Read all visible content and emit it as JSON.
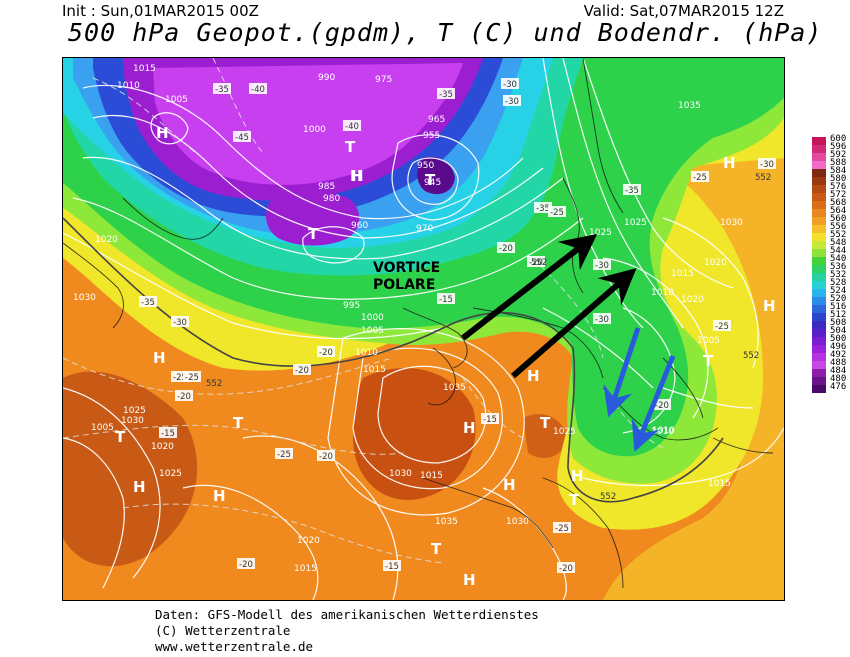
{
  "header": {
    "init": "Init : Sun,01MAR2015 00Z",
    "valid": "Valid: Sat,07MAR2015 12Z",
    "title": "500 hPa Geopot.(gpdm), T (C) und Bodendr. (hPa)"
  },
  "annotation": {
    "vortex_label": "VORTICE POLARE"
  },
  "colors": {
    "deep_purple": "#5a0a8c",
    "purple": "#9b1fd0",
    "magenta": "#c83ff0",
    "blue": "#2b4cd6",
    "light_blue": "#3aa0f0",
    "cyan": "#28d2e6",
    "teal": "#22d6a8",
    "green": "#2ed24a",
    "lime": "#8ee83a",
    "yellow": "#f0e62a",
    "orange_light": "#f5b428",
    "orange": "#f08a1e",
    "rust": "#c85010",
    "arrow_black": "#000000",
    "arrow_blue": "#2a5adc"
  },
  "legend": {
    "labels": [
      "600",
      "596",
      "592",
      "588",
      "584",
      "580",
      "576",
      "572",
      "568",
      "564",
      "560",
      "556",
      "552",
      "548",
      "544",
      "540",
      "536",
      "532",
      "528",
      "524",
      "520",
      "516",
      "512",
      "508",
      "504",
      "500",
      "496",
      "492",
      "488",
      "484",
      "480",
      "476"
    ],
    "colors": [
      "#c8145a",
      "#d22a7a",
      "#e04aa0",
      "#f06ac8",
      "#7a2a10",
      "#9a3a12",
      "#b44a14",
      "#c85a16",
      "#d8701a",
      "#e8881e",
      "#f0a024",
      "#f5c02a",
      "#f5e02c",
      "#c8e83a",
      "#8ee03a",
      "#44d23a",
      "#2ed264",
      "#26d2a0",
      "#28d2d2",
      "#2ab4ec",
      "#2a8ee8",
      "#2a66dc",
      "#2a44cc",
      "#3a2abe",
      "#5a20c8",
      "#7a1ed2",
      "#9a22dc",
      "#b432e0",
      "#c848e4",
      "#8a1eaa",
      "#6a1488",
      "#4a0a6a"
    ]
  },
  "pressure_labels": [
    "1015",
    "1010",
    "1005",
    "1000",
    "990",
    "985",
    "980",
    "975",
    "965",
    "960",
    "955",
    "950",
    "945",
    "970",
    "1030",
    "1035",
    "1025",
    "1020",
    "1015",
    "1010",
    "1005",
    "1000",
    "995",
    "1035",
    "1025",
    "1030",
    "1020",
    "1010",
    "1015",
    "1020",
    "1025",
    "1030",
    "1035",
    "1005",
    "1010",
    "1015",
    "1020",
    "1025",
    "1030",
    "1015",
    "1025",
    "1030",
    "1020",
    "1015",
    "1010",
    "1005"
  ],
  "temp_labels": [
    "-35",
    "-40",
    "-45",
    "-40",
    "-35",
    "-30",
    "-30",
    "-35",
    "-25",
    "-30",
    "-25",
    "-20",
    "-15",
    "-25",
    "-20",
    "-15",
    "-20",
    "-20",
    "-20",
    "-30",
    "-35",
    "-25",
    "-30",
    "-25",
    "-15",
    "-20",
    "-15",
    "-20",
    "-20",
    "-25",
    "-30",
    "-35",
    "-20",
    "-25"
  ],
  "pressure_systems": [
    "H",
    "H",
    "H",
    "H",
    "H",
    "H",
    "H",
    "H",
    "H",
    "H",
    "H",
    "H",
    "H",
    "T",
    "T",
    "T",
    "T",
    "T",
    "T",
    "T",
    "T",
    "T"
  ],
  "isohypse_labels": [
    "552",
    "552",
    "552",
    "552",
    "552"
  ],
  "credits": {
    "line1": "Daten: GFS-Modell des amerikanischen Wetterdienstes",
    "line2": "(C) Wetterzentrale",
    "line3": "www.wetterzentrale.de"
  }
}
